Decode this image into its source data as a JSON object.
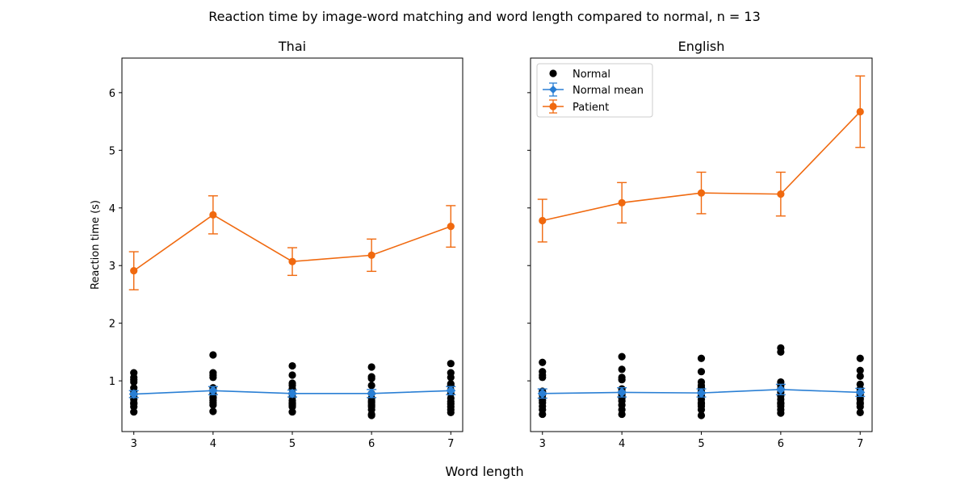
{
  "figure": {
    "suptitle": "Reaction time by image-word matching and word length compared to normal, n = 13",
    "supxlabel": "Word length",
    "colors": {
      "normal": "#000000",
      "normal_mean": "#2a7fd4",
      "patient": "#f0690f"
    }
  },
  "chart_data": [
    {
      "type": "line",
      "title": "Thai",
      "xlabel": "",
      "ylabel": "Reaction time (s)",
      "xticks": [
        3,
        4,
        5,
        6,
        7
      ],
      "ylim": [
        0.12,
        6.6
      ],
      "yticks": [
        1,
        2,
        3,
        4,
        5,
        6
      ],
      "grid": false,
      "normal_points": [
        {
          "x": 3,
          "y": [
            0.46,
            0.55,
            0.62,
            0.68,
            0.72,
            0.78,
            0.82,
            0.88,
            0.98,
            1.02,
            1.06,
            1.14,
            0.6
          ]
        },
        {
          "x": 4,
          "y": [
            0.47,
            0.58,
            0.62,
            0.66,
            0.72,
            0.78,
            0.84,
            0.88,
            1.06,
            1.1,
            1.14,
            1.45,
            0.7
          ]
        },
        {
          "x": 5,
          "y": [
            0.46,
            0.55,
            0.58,
            0.62,
            0.66,
            0.72,
            0.78,
            0.86,
            0.92,
            0.96,
            1.1,
            1.26,
            0.6
          ]
        },
        {
          "x": 6,
          "y": [
            0.4,
            0.42,
            0.55,
            0.58,
            0.62,
            0.65,
            0.7,
            0.78,
            0.92,
            1.04,
            1.07,
            1.24,
            0.5
          ]
        },
        {
          "x": 7,
          "y": [
            0.45,
            0.55,
            0.6,
            0.64,
            0.7,
            0.78,
            0.84,
            0.92,
            0.95,
            1.06,
            1.14,
            1.3,
            0.5
          ]
        }
      ],
      "series": [
        {
          "name": "Normal mean",
          "x": [
            3,
            4,
            5,
            6,
            7
          ],
          "values": [
            0.77,
            0.83,
            0.78,
            0.78,
            0.83
          ],
          "err": [
            0.06,
            0.07,
            0.06,
            0.07,
            0.07
          ]
        },
        {
          "name": "Patient",
          "x": [
            3,
            4,
            5,
            6,
            7
          ],
          "values": [
            2.91,
            3.88,
            3.07,
            3.18,
            3.68
          ],
          "err": [
            0.33,
            0.33,
            0.24,
            0.28,
            0.36
          ]
        }
      ]
    },
    {
      "type": "line",
      "title": "English",
      "xlabel": "",
      "ylabel": "",
      "xticks": [
        3,
        4,
        5,
        6,
        7
      ],
      "ylim": [
        0.12,
        6.6
      ],
      "yticks": [
        1,
        2,
        3,
        4,
        5,
        6
      ],
      "grid": false,
      "legend": {
        "position": "top-left",
        "entries": [
          "Normal",
          "Normal mean",
          "Patient"
        ]
      },
      "normal_points": [
        {
          "x": 3,
          "y": [
            0.42,
            0.5,
            0.56,
            0.62,
            0.7,
            0.76,
            0.82,
            1.06,
            1.1,
            1.16,
            1.32,
            0.66,
            0.8
          ]
        },
        {
          "x": 4,
          "y": [
            0.42,
            0.5,
            0.58,
            0.65,
            0.72,
            0.76,
            0.82,
            0.86,
            1.02,
            1.06,
            1.2,
            1.42,
            0.7
          ]
        },
        {
          "x": 5,
          "y": [
            0.4,
            0.5,
            0.56,
            0.62,
            0.68,
            0.74,
            0.82,
            0.88,
            0.92,
            0.98,
            1.16,
            1.39,
            0.6
          ]
        },
        {
          "x": 6,
          "y": [
            0.44,
            0.5,
            0.56,
            0.62,
            0.68,
            0.74,
            0.8,
            0.86,
            0.92,
            0.98,
            1.5,
            1.57,
            0.6
          ]
        },
        {
          "x": 7,
          "y": [
            0.45,
            0.55,
            0.62,
            0.7,
            0.76,
            0.82,
            0.86,
            0.94,
            1.08,
            1.18,
            1.39,
            0.68,
            0.6
          ]
        }
      ],
      "series": [
        {
          "name": "Normal mean",
          "x": [
            3,
            4,
            5,
            6,
            7
          ],
          "values": [
            0.78,
            0.8,
            0.79,
            0.85,
            0.8
          ],
          "err": [
            0.08,
            0.08,
            0.07,
            0.09,
            0.07
          ]
        },
        {
          "name": "Patient",
          "x": [
            3,
            4,
            5,
            6,
            7
          ],
          "values": [
            3.78,
            4.09,
            4.26,
            4.24,
            5.67
          ],
          "err": [
            0.37,
            0.35,
            0.36,
            0.38,
            0.62
          ]
        }
      ]
    }
  ]
}
